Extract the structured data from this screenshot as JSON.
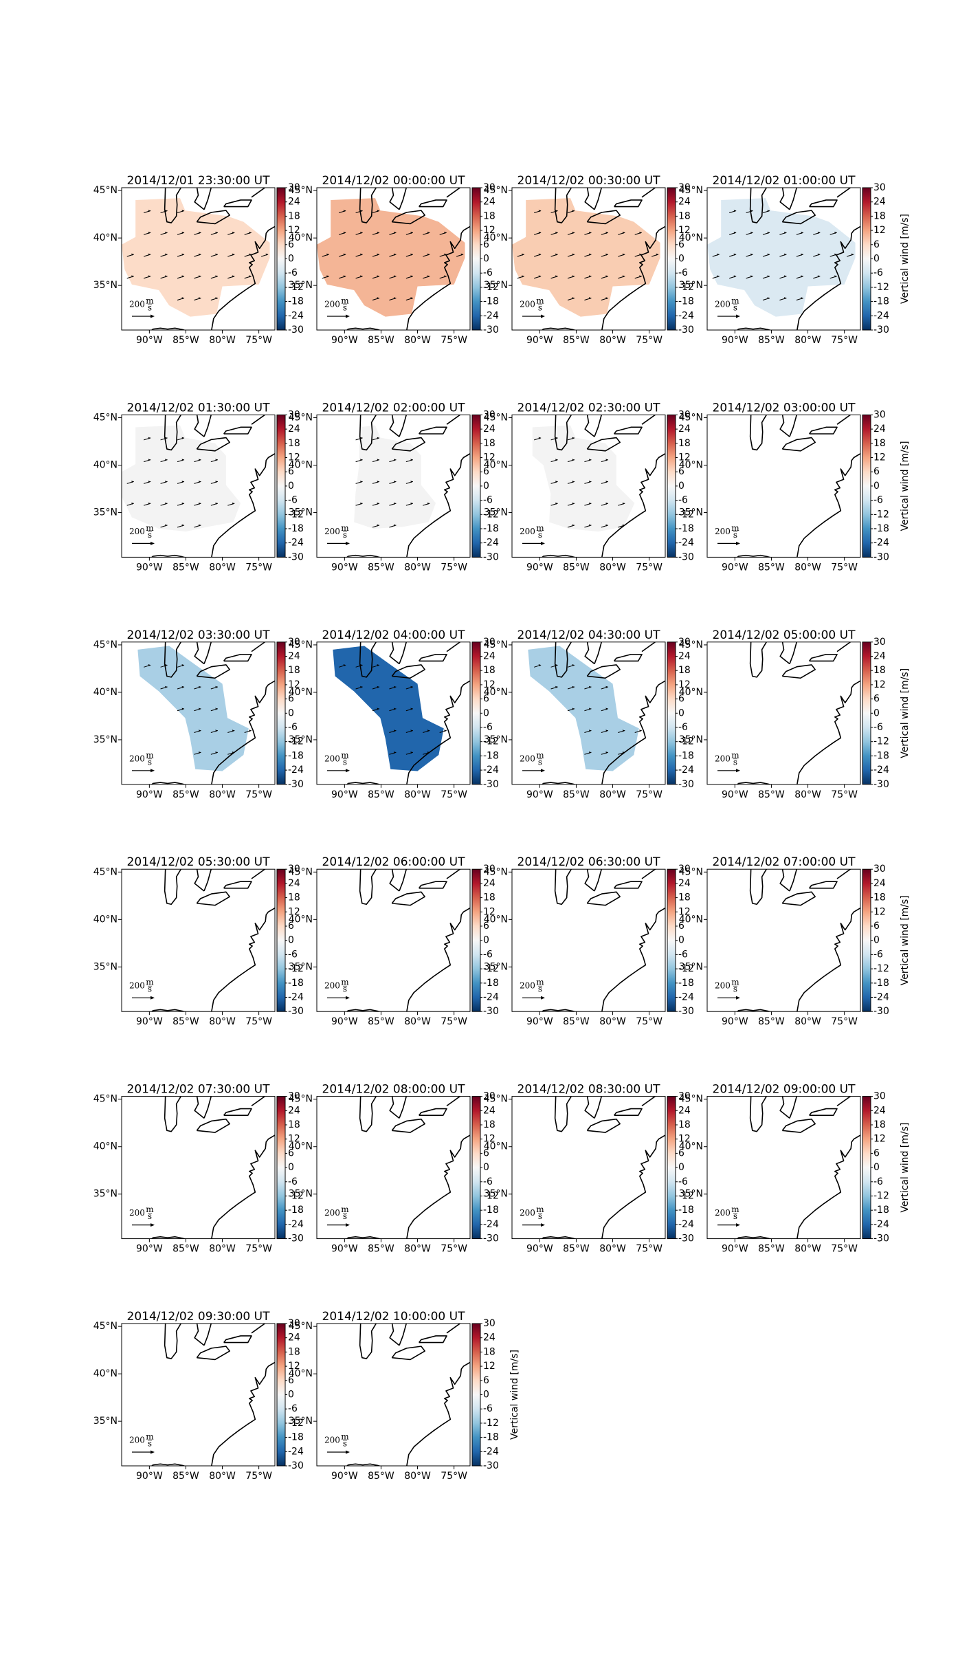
{
  "map": {
    "xlim": [
      -93.8,
      -72.8
    ],
    "ylim": [
      30.3,
      45.3
    ],
    "xticks": [
      {
        "value": -90,
        "label": "90°W"
      },
      {
        "value": -85,
        "label": "85°W"
      },
      {
        "value": -80,
        "label": "80°W"
      },
      {
        "value": -75,
        "label": "75°W"
      }
    ],
    "yticks": [
      {
        "value": 45,
        "label": "45°N"
      },
      {
        "value": 40,
        "label": "40°N"
      },
      {
        "value": 35,
        "label": "35°N"
      }
    ],
    "colorbar": {
      "lim": [
        -30,
        30
      ],
      "ticks": [
        30,
        24,
        18,
        12,
        6,
        0,
        -6,
        -12,
        -18,
        -24,
        -30
      ],
      "label": "Vertical wind [m/s]",
      "colors": [
        "#053061",
        "#2166ac",
        "#4393c3",
        "#92c5de",
        "#d1e5f0",
        "#f7f7f7",
        "#fddbc7",
        "#f4a582",
        "#d6604d",
        "#b2182b",
        "#67001f"
      ]
    },
    "scale": {
      "value": 200,
      "unit_num": "m",
      "unit_den": "s"
    }
  },
  "panels": [
    {
      "title": "2014/12/01 23:30:00 UT",
      "fill": "#fcdcc8",
      "vectors": true,
      "colorbar_label": false,
      "region": [
        [
          -91.9,
          44.0
        ],
        [
          -85.8,
          44.2
        ],
        [
          -85.1,
          42.9
        ],
        [
          -79.3,
          42.3
        ],
        [
          -77.1,
          41.7
        ],
        [
          -73.5,
          39.5
        ],
        [
          -73.5,
          37.9
        ],
        [
          -75.0,
          35.1
        ],
        [
          -80.0,
          34.9
        ],
        [
          -80.8,
          32.0
        ],
        [
          -84.4,
          31.7
        ],
        [
          -87.3,
          32.9
        ],
        [
          -88.7,
          34.5
        ],
        [
          -92.4,
          35.1
        ],
        [
          -93.4,
          36.7
        ],
        [
          -93.8,
          39.3
        ],
        [
          -91.9,
          40.1
        ]
      ]
    },
    {
      "title": "2014/12/02 00:00:00 UT",
      "fill": "#f4b596",
      "vectors": true,
      "colorbar_label": false,
      "region": [
        [
          -91.9,
          44.0
        ],
        [
          -85.8,
          44.2
        ],
        [
          -85.1,
          42.9
        ],
        [
          -79.3,
          42.3
        ],
        [
          -77.1,
          41.7
        ],
        [
          -73.5,
          39.5
        ],
        [
          -73.5,
          37.9
        ],
        [
          -75.0,
          35.1
        ],
        [
          -80.0,
          34.9
        ],
        [
          -80.8,
          32.0
        ],
        [
          -84.4,
          31.7
        ],
        [
          -87.3,
          32.9
        ],
        [
          -88.7,
          34.5
        ],
        [
          -92.4,
          35.1
        ],
        [
          -93.4,
          36.7
        ],
        [
          -93.8,
          39.3
        ],
        [
          -91.9,
          40.1
        ]
      ]
    },
    {
      "title": "2014/12/02 00:30:00 UT",
      "fill": "#f9cdb2",
      "vectors": true,
      "colorbar_label": false,
      "region": [
        [
          -91.9,
          44.0
        ],
        [
          -85.8,
          44.2
        ],
        [
          -85.1,
          42.9
        ],
        [
          -79.3,
          42.3
        ],
        [
          -77.1,
          41.7
        ],
        [
          -73.5,
          39.5
        ],
        [
          -73.5,
          37.9
        ],
        [
          -75.0,
          35.1
        ],
        [
          -80.0,
          34.9
        ],
        [
          -80.8,
          32.0
        ],
        [
          -84.4,
          31.7
        ],
        [
          -87.3,
          32.9
        ],
        [
          -88.7,
          34.5
        ],
        [
          -92.4,
          35.1
        ],
        [
          -93.4,
          36.7
        ],
        [
          -93.8,
          39.3
        ],
        [
          -91.9,
          40.1
        ]
      ]
    },
    {
      "title": "2014/12/02 01:00:00 UT",
      "fill": "#dbe9f2",
      "vectors": true,
      "colorbar_label": true,
      "region": [
        [
          -91.9,
          44.0
        ],
        [
          -85.8,
          44.2
        ],
        [
          -85.1,
          42.9
        ],
        [
          -79.3,
          42.3
        ],
        [
          -77.1,
          41.7
        ],
        [
          -73.5,
          39.5
        ],
        [
          -73.5,
          37.9
        ],
        [
          -75.0,
          35.1
        ],
        [
          -80.0,
          34.9
        ],
        [
          -80.8,
          32.0
        ],
        [
          -84.4,
          31.7
        ],
        [
          -87.3,
          32.9
        ],
        [
          -88.7,
          34.5
        ],
        [
          -92.4,
          35.1
        ],
        [
          -93.4,
          36.7
        ],
        [
          -93.8,
          39.3
        ],
        [
          -91.9,
          40.1
        ]
      ]
    },
    {
      "title": "2014/12/02 01:30:00 UT",
      "fill": "#f3f3f3",
      "vectors": true,
      "colorbar_label": false,
      "region": [
        [
          -91.9,
          44.0
        ],
        [
          -85.8,
          44.2
        ],
        [
          -85.1,
          42.9
        ],
        [
          -81.0,
          42.3
        ],
        [
          -79.5,
          41.0
        ],
        [
          -79.5,
          37.9
        ],
        [
          -77.5,
          36.0
        ],
        [
          -78.5,
          34.0
        ],
        [
          -82.0,
          33.5
        ],
        [
          -85.0,
          33.0
        ],
        [
          -88.7,
          33.3
        ],
        [
          -92.4,
          34.5
        ],
        [
          -93.8,
          36.7
        ],
        [
          -93.8,
          39.3
        ],
        [
          -91.9,
          40.1
        ]
      ]
    },
    {
      "title": "2014/12/02 02:00:00 UT",
      "fill": "#f3f3f3",
      "vectors": true,
      "colorbar_label": false,
      "region": [
        [
          -88.0,
          44.0
        ],
        [
          -85.8,
          44.2
        ],
        [
          -85.1,
          42.9
        ],
        [
          -81.0,
          42.3
        ],
        [
          -79.5,
          41.0
        ],
        [
          -79.5,
          37.9
        ],
        [
          -77.5,
          36.0
        ],
        [
          -78.5,
          34.0
        ],
        [
          -82.0,
          33.5
        ],
        [
          -86.0,
          33.3
        ],
        [
          -88.7,
          34.0
        ],
        [
          -88.5,
          37.0
        ],
        [
          -88.0,
          40.0
        ]
      ]
    },
    {
      "title": "2014/12/02 02:30:00 UT",
      "fill": "#f3f3f3",
      "vectors": true,
      "colorbar_label": false,
      "region": [
        [
          -91.0,
          44.0
        ],
        [
          -85.8,
          44.2
        ],
        [
          -85.1,
          42.9
        ],
        [
          -81.0,
          42.3
        ],
        [
          -79.5,
          41.0
        ],
        [
          -79.5,
          37.9
        ],
        [
          -77.0,
          36.0
        ],
        [
          -78.5,
          33.5
        ],
        [
          -82.0,
          33.0
        ],
        [
          -86.0,
          33.3
        ],
        [
          -88.7,
          34.0
        ],
        [
          -88.5,
          37.0
        ],
        [
          -89.5,
          40.0
        ],
        [
          -91.0,
          41.0
        ]
      ]
    },
    {
      "title": "2014/12/02 03:00:00 UT",
      "fill": null,
      "vectors": false,
      "colorbar_label": true,
      "region": null
    },
    {
      "title": "2014/12/02 03:30:00 UT",
      "fill": "#a9cfe5",
      "vectors": true,
      "colorbar_label": false,
      "region": [
        [
          -91.6,
          44.5
        ],
        [
          -87.3,
          44.9
        ],
        [
          -83.7,
          42.9
        ],
        [
          -80.0,
          40.9
        ],
        [
          -79.3,
          37.3
        ],
        [
          -76.4,
          36.2
        ],
        [
          -77.1,
          33.4
        ],
        [
          -80.0,
          31.7
        ],
        [
          -83.7,
          31.9
        ],
        [
          -84.4,
          35.1
        ],
        [
          -85.1,
          37.3
        ],
        [
          -88.7,
          40.1
        ],
        [
          -91.3,
          41.7
        ]
      ]
    },
    {
      "title": "2014/12/02 04:00:00 UT",
      "fill": "#2166ac",
      "vectors": true,
      "colorbar_label": false,
      "region": [
        [
          -91.6,
          44.5
        ],
        [
          -87.3,
          44.9
        ],
        [
          -83.7,
          42.9
        ],
        [
          -80.0,
          40.9
        ],
        [
          -79.3,
          37.3
        ],
        [
          -76.4,
          36.2
        ],
        [
          -77.1,
          33.4
        ],
        [
          -80.0,
          31.7
        ],
        [
          -83.7,
          31.9
        ],
        [
          -84.4,
          35.1
        ],
        [
          -85.1,
          37.3
        ],
        [
          -88.7,
          40.1
        ],
        [
          -91.3,
          41.7
        ]
      ]
    },
    {
      "title": "2014/12/02 04:30:00 UT",
      "fill": "#a9cfe5",
      "vectors": true,
      "colorbar_label": false,
      "region": [
        [
          -91.6,
          44.5
        ],
        [
          -87.3,
          44.9
        ],
        [
          -83.7,
          42.9
        ],
        [
          -80.0,
          40.9
        ],
        [
          -79.3,
          37.3
        ],
        [
          -76.4,
          36.2
        ],
        [
          -77.1,
          33.4
        ],
        [
          -80.0,
          31.7
        ],
        [
          -83.7,
          31.9
        ],
        [
          -84.4,
          35.1
        ],
        [
          -85.1,
          37.3
        ],
        [
          -88.7,
          40.1
        ],
        [
          -91.3,
          41.7
        ]
      ]
    },
    {
      "title": "2014/12/02 05:00:00 UT",
      "fill": null,
      "vectors": false,
      "colorbar_label": true,
      "region": null
    },
    {
      "title": "2014/12/02 05:30:00 UT",
      "fill": null,
      "vectors": false,
      "colorbar_label": false,
      "region": null
    },
    {
      "title": "2014/12/02 06:00:00 UT",
      "fill": null,
      "vectors": false,
      "colorbar_label": false,
      "region": null
    },
    {
      "title": "2014/12/02 06:30:00 UT",
      "fill": null,
      "vectors": false,
      "colorbar_label": false,
      "region": null
    },
    {
      "title": "2014/12/02 07:00:00 UT",
      "fill": null,
      "vectors": false,
      "colorbar_label": true,
      "region": null
    },
    {
      "title": "2014/12/02 07:30:00 UT",
      "fill": null,
      "vectors": false,
      "colorbar_label": false,
      "region": null
    },
    {
      "title": "2014/12/02 08:00:00 UT",
      "fill": null,
      "vectors": false,
      "colorbar_label": false,
      "region": null
    },
    {
      "title": "2014/12/02 08:30:00 UT",
      "fill": null,
      "vectors": false,
      "colorbar_label": false,
      "region": null
    },
    {
      "title": "2014/12/02 09:00:00 UT",
      "fill": null,
      "vectors": false,
      "colorbar_label": true,
      "region": null
    },
    {
      "title": "2014/12/02 09:30:00 UT",
      "fill": null,
      "vectors": false,
      "colorbar_label": false,
      "region": null
    },
    {
      "title": "2014/12/02 10:00:00 UT",
      "fill": null,
      "vectors": false,
      "colorbar_label": true,
      "region": null
    }
  ]
}
